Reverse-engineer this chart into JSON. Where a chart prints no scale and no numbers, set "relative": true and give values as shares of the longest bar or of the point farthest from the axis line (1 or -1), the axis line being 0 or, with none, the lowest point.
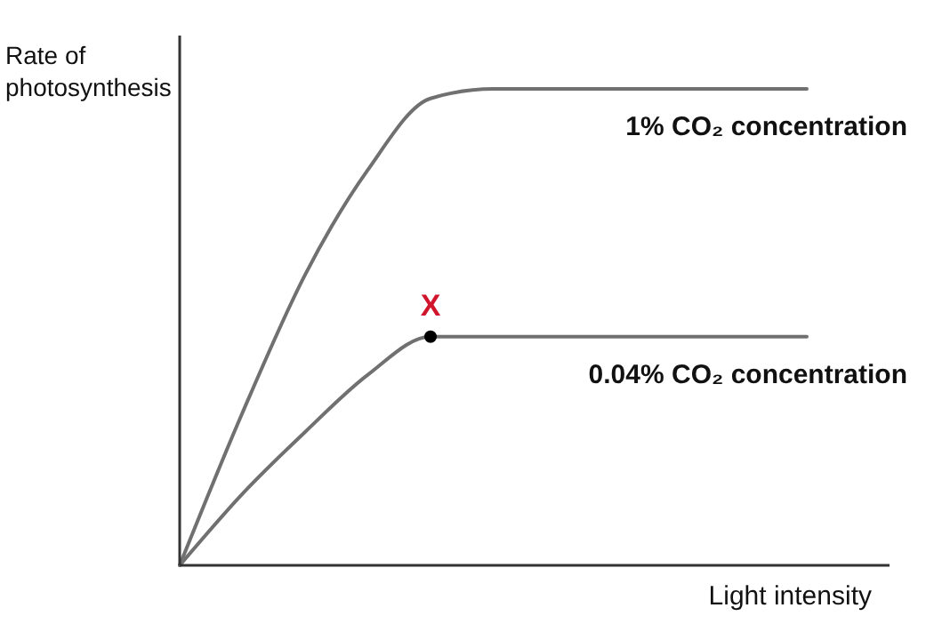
{
  "chart_data": {
    "type": "line",
    "relative": true,
    "xlabel": "Light intensity",
    "ylabel": "Rate of\nphotosynthesis",
    "categories": [
      null,
      null,
      null,
      null,
      null,
      null,
      null,
      null,
      null,
      null,
      null
    ],
    "series": [
      {
        "name": "1% CO₂ concentration",
        "color": "#707070",
        "values": [
          0,
          0.32,
          0.61,
          0.83,
          0.98,
          1,
          1,
          1,
          1,
          1,
          1
        ]
      },
      {
        "name": "0.04% CO₂ concentration",
        "color": "#707070",
        "values": [
          0,
          0.15,
          0.28,
          0.4,
          0.48,
          0.48,
          0.48,
          0.48,
          0.48,
          0.48,
          0.48
        ]
      }
    ],
    "annotations": [
      {
        "text": "X",
        "y": 0.48
      }
    ],
    "legend": false,
    "marker": "none",
    "line_style": "solid"
  }
}
